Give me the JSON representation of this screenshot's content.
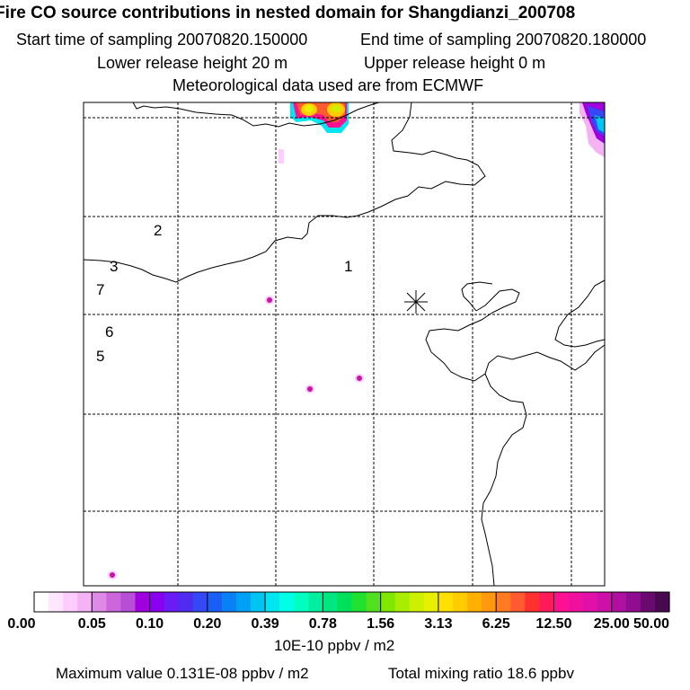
{
  "header": {
    "title": "Fire CO source contributions in nested domain for Shangdianzi_200708",
    "start_time": "Start time of sampling 20070820.150000",
    "end_time": "End time of sampling 20070820.180000",
    "lower_release": "Lower release height   20 m",
    "upper_release": "Upper release height    0 m",
    "met_data": "Meteorological data used are from ECMWF"
  },
  "map": {
    "receptor_marker": "star-icon",
    "locations": [
      {
        "label": "1"
      },
      {
        "label": "2"
      },
      {
        "label": "3"
      },
      {
        "label": "7"
      },
      {
        "label": "6"
      },
      {
        "label": "5"
      }
    ]
  },
  "colorbar": {
    "tick_labels": [
      "0.00",
      "0.05",
      "0.10",
      "0.20",
      "0.39",
      "0.78",
      "1.56",
      "3.13",
      "6.25",
      "12.50",
      "25.00",
      "50.00"
    ],
    "colors": [
      "#ffffff",
      "#ffe6ff",
      "#ffccff",
      "#f5b3f5",
      "#e08ae8",
      "#cc66dd",
      "#b84dd6",
      "#a000e0",
      "#8a00f0",
      "#6a1cf5",
      "#4f2cf0",
      "#3548f5",
      "#1a5ef5",
      "#0a80f5",
      "#00a0f5",
      "#00c4f2",
      "#00e6f0",
      "#00ffe6",
      "#00ffc0",
      "#00f0a0",
      "#00e680",
      "#00e05a",
      "#20e030",
      "#50e020",
      "#80e800",
      "#a8ee00",
      "#ccf000",
      "#e6f000",
      "#ffe000",
      "#ffcc00",
      "#ffb000",
      "#ff9a10",
      "#ff7a20",
      "#ff5a30",
      "#ff3030",
      "#ff1a5a",
      "#ff1090",
      "#f010a0",
      "#e010a8",
      "#cc10a8",
      "#b010a0",
      "#900c90",
      "#6a0a70",
      "#4a0850"
    ],
    "units": "10E-10 ppbv / m2"
  },
  "footer": {
    "max_value": "Maximum value  0.131E-08 ppbv / m2",
    "total_mixing": "Total mixing ratio       18.6 ppbv"
  }
}
